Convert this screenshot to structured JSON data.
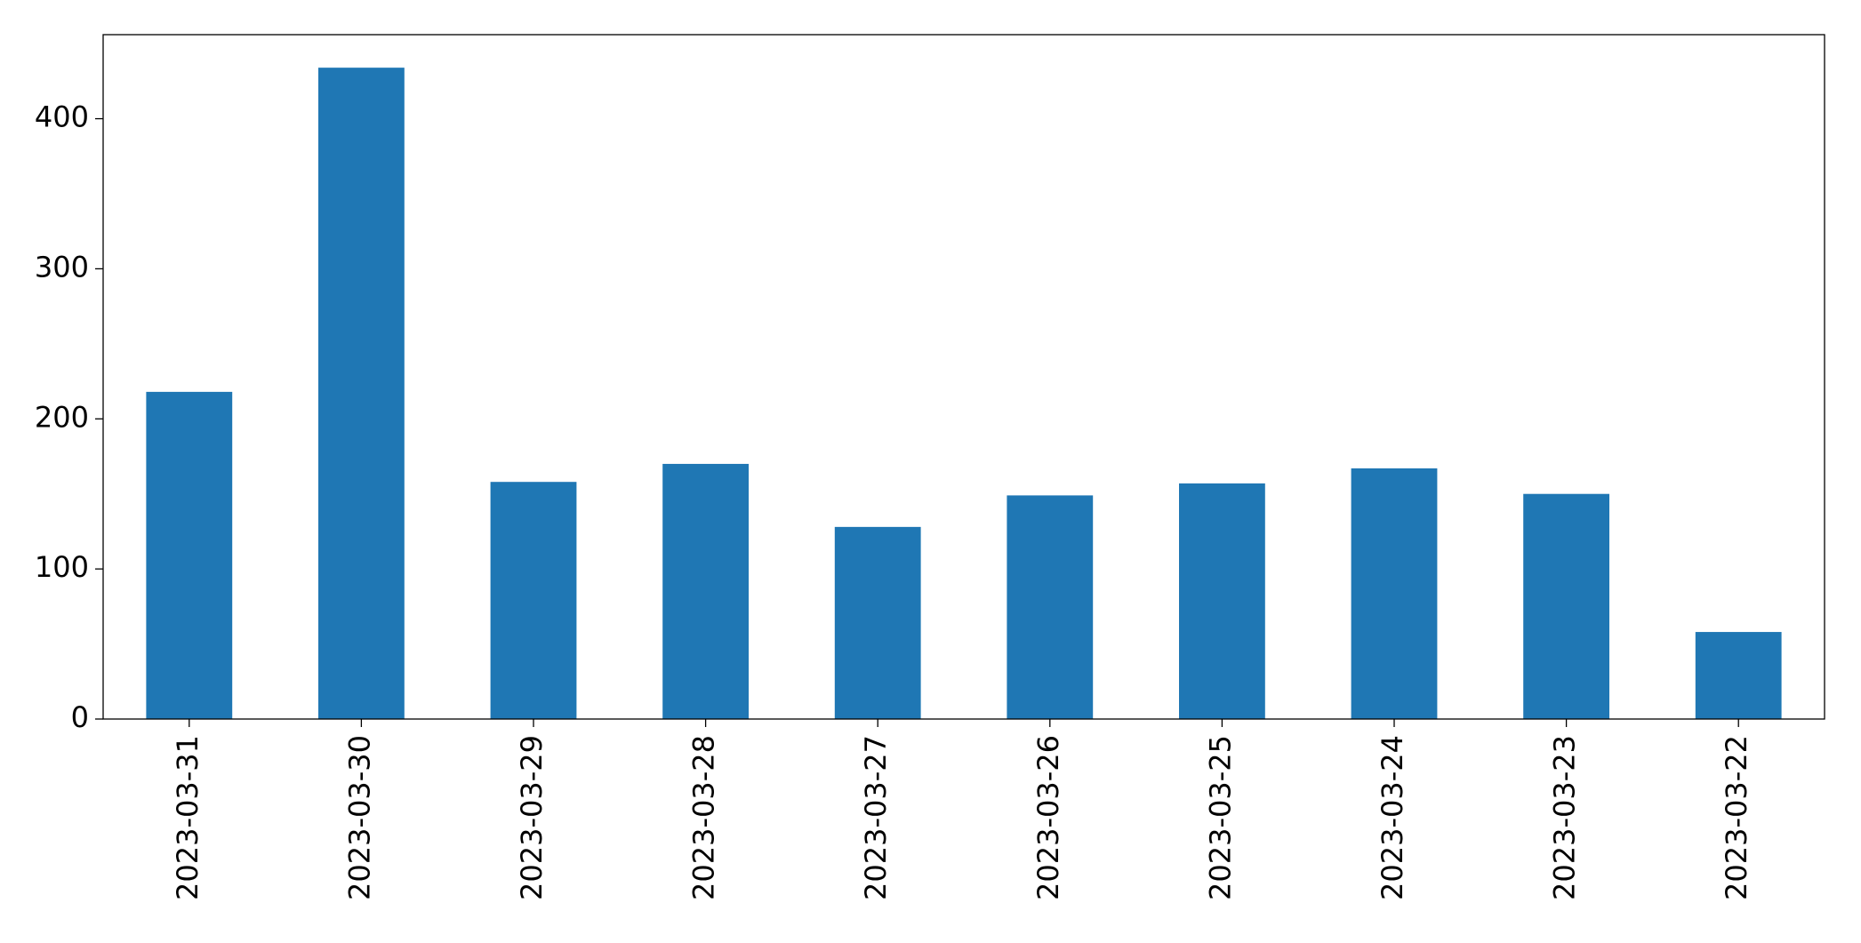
{
  "chart_data": {
    "type": "bar",
    "categories": [
      "2023-03-31",
      "2023-03-30",
      "2023-03-29",
      "2023-03-28",
      "2023-03-27",
      "2023-03-26",
      "2023-03-25",
      "2023-03-24",
      "2023-03-23",
      "2023-03-22"
    ],
    "values": [
      218,
      434,
      158,
      170,
      128,
      149,
      157,
      167,
      150,
      58
    ],
    "color": "#1f77b4",
    "ylim": [
      0,
      456
    ],
    "yticks": [
      0,
      100,
      200,
      300,
      400
    ],
    "grid": false
  }
}
